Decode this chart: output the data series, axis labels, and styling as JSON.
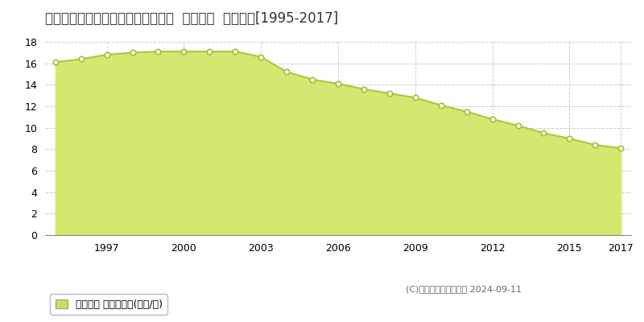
{
  "title": "秋田県能代市字寿域長根５０番３外  地価公示  地価推移[1995-2017]",
  "years": [
    1995,
    1996,
    1997,
    1998,
    1999,
    2000,
    2001,
    2002,
    2003,
    2004,
    2005,
    2006,
    2007,
    2008,
    2009,
    2010,
    2011,
    2012,
    2013,
    2014,
    2015,
    2016,
    2017
  ],
  "values": [
    16.1,
    16.4,
    16.8,
    17.0,
    17.1,
    17.1,
    17.1,
    17.1,
    16.6,
    15.2,
    14.5,
    14.1,
    13.6,
    13.2,
    12.8,
    12.1,
    11.5,
    10.8,
    10.2,
    9.5,
    9.0,
    8.4,
    8.1
  ],
  "line_color": "#a8c840",
  "fill_color": "#d4e870",
  "marker_facecolor": "#ffffff",
  "marker_edgecolor": "#a0c030",
  "background_color": "#ffffff",
  "plot_bg_color": "#ffffff",
  "grid_color": "#cccccc",
  "ylim": [
    0,
    18
  ],
  "yticks": [
    0,
    2,
    4,
    6,
    8,
    10,
    12,
    14,
    16,
    18
  ],
  "xticks": [
    1997,
    2000,
    2003,
    2006,
    2009,
    2012,
    2015,
    2017
  ],
  "legend_label": "地価公示 平均坪単価(万円/坪)",
  "legend_color": "#c8e060",
  "copyright": "(C)土地価格ドットコム 2024-09-11",
  "title_fontsize": 12,
  "axis_fontsize": 9,
  "xlim_left": 1994.6,
  "xlim_right": 2017.4
}
